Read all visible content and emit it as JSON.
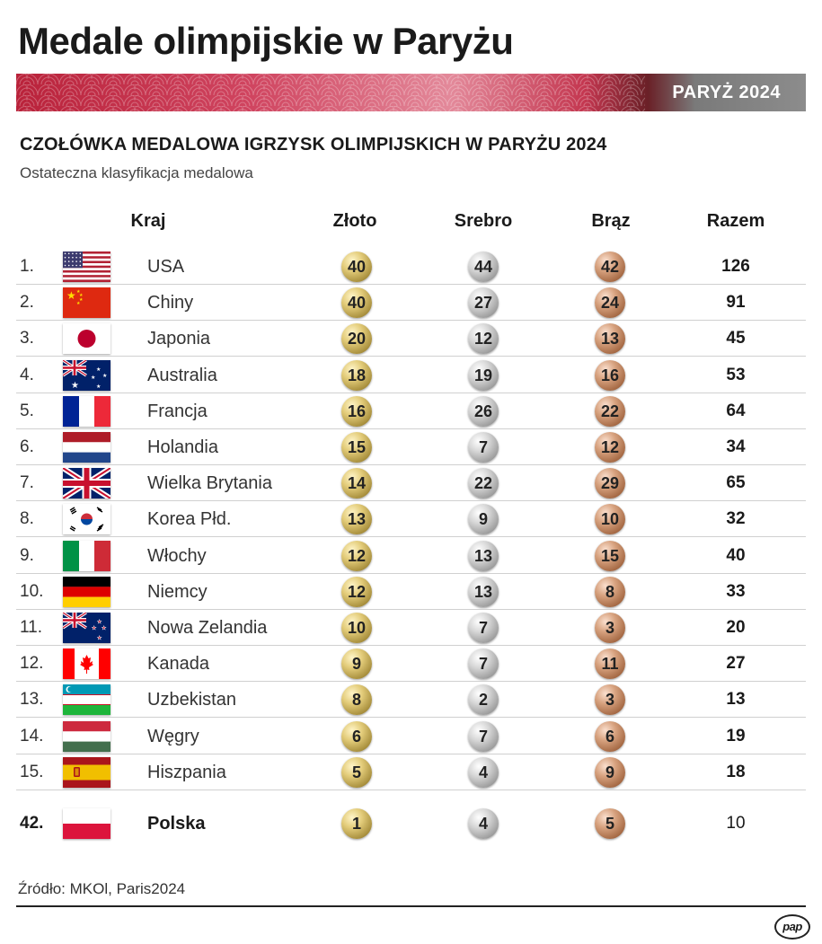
{
  "title": "Medale olimpijskie w Paryżu",
  "banner_label": "PARYŻ 2024",
  "subtitle": "CZOŁÓWKA MEDALOWA IGRZYSK OLIMPIJSKICH W PARYŻU 2024",
  "subtext": "Ostateczna klasyfikacja medalowa",
  "columns": {
    "country": "Kraj",
    "gold": "Złoto",
    "silver": "Srebro",
    "bronze": "Brąz",
    "total": "Razem"
  },
  "rows": [
    {
      "rank": "1.",
      "country": "USA",
      "flag": "usa-flag",
      "gold": "40",
      "silver": "44",
      "bronze": "42",
      "total": "126"
    },
    {
      "rank": "2.",
      "country": "Chiny",
      "flag": "china-flag",
      "gold": "40",
      "silver": "27",
      "bronze": "24",
      "total": "91"
    },
    {
      "rank": "3.",
      "country": "Japonia",
      "flag": "japan-flag",
      "gold": "20",
      "silver": "12",
      "bronze": "13",
      "total": "45"
    },
    {
      "rank": "4.",
      "country": "Australia",
      "flag": "australia-flag",
      "gold": "18",
      "silver": "19",
      "bronze": "16",
      "total": "53"
    },
    {
      "rank": "5.",
      "country": "Francja",
      "flag": "france-flag",
      "gold": "16",
      "silver": "26",
      "bronze": "22",
      "total": "64"
    },
    {
      "rank": "6.",
      "country": "Holandia",
      "flag": "netherlands-flag",
      "gold": "15",
      "silver": "7",
      "bronze": "12",
      "total": "34"
    },
    {
      "rank": "7.",
      "country": "Wielka Brytania",
      "flag": "uk-flag",
      "gold": "14",
      "silver": "22",
      "bronze": "29",
      "total": "65"
    },
    {
      "rank": "8.",
      "country": "Korea Płd.",
      "flag": "korea-flag",
      "gold": "13",
      "silver": "9",
      "bronze": "10",
      "total": "32"
    },
    {
      "rank": "9.",
      "country": "Włochy",
      "flag": "italy-flag",
      "gold": "12",
      "silver": "13",
      "bronze": "15",
      "total": "40"
    },
    {
      "rank": "10.",
      "country": "Niemcy",
      "flag": "germany-flag",
      "gold": "12",
      "silver": "13",
      "bronze": "8",
      "total": "33"
    },
    {
      "rank": "11.",
      "country": "Nowa Zelandia",
      "flag": "new-zealand-flag",
      "gold": "10",
      "silver": "7",
      "bronze": "3",
      "total": "20"
    },
    {
      "rank": "12.",
      "country": "Kanada",
      "flag": "canada-flag",
      "gold": "9",
      "silver": "7",
      "bronze": "11",
      "total": "27"
    },
    {
      "rank": "13.",
      "country": "Uzbekistan",
      "flag": "uzbekistan-flag",
      "gold": "8",
      "silver": "2",
      "bronze": "3",
      "total": "13"
    },
    {
      "rank": "14.",
      "country": "Węgry",
      "flag": "hungary-flag",
      "gold": "6",
      "silver": "7",
      "bronze": "6",
      "total": "19"
    },
    {
      "rank": "15.",
      "country": "Hiszpania",
      "flag": "spain-flag",
      "gold": "5",
      "silver": "4",
      "bronze": "9",
      "total": "18"
    }
  ],
  "poland": {
    "rank": "42.",
    "country": "Polska",
    "flag": "poland-flag",
    "gold": "1",
    "silver": "4",
    "bronze": "5",
    "total": "10"
  },
  "source": "Źródło: MKOl, Paris2024",
  "logo": "pap",
  "colors": {
    "banner_red": "#b9223a",
    "banner_grey": "#8c8c8c",
    "gold": "#d4bc63",
    "silver": "#c4c4c4",
    "bronze": "#c48a64"
  }
}
